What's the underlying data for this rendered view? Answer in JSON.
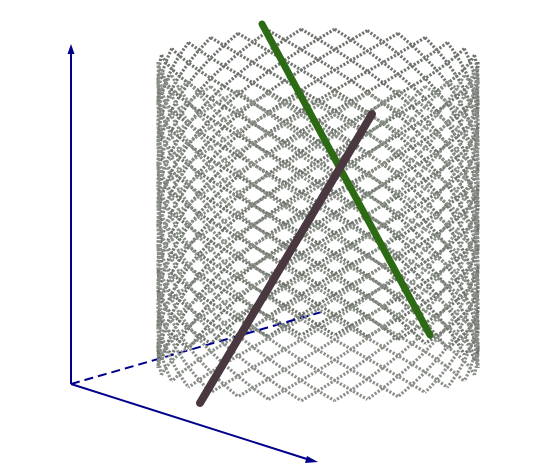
{
  "scene": {
    "description_free": true,
    "colors": {
      "background": "#ffffff",
      "axes": "#00008b",
      "lattice": "#8a9088",
      "lattice_dark": "#6f756d",
      "highlight_green": "#2c6a14",
      "highlight_plum": "#4a3840"
    },
    "helices": {
      "count_per_direction": 30,
      "turns_visible": "front-and-back"
    },
    "marked_helices": [
      {
        "name": "green-helix",
        "color_key": "highlight_green",
        "direction": "right"
      },
      {
        "name": "plum-helix",
        "color_key": "highlight_plum",
        "direction": "left"
      }
    ]
  }
}
